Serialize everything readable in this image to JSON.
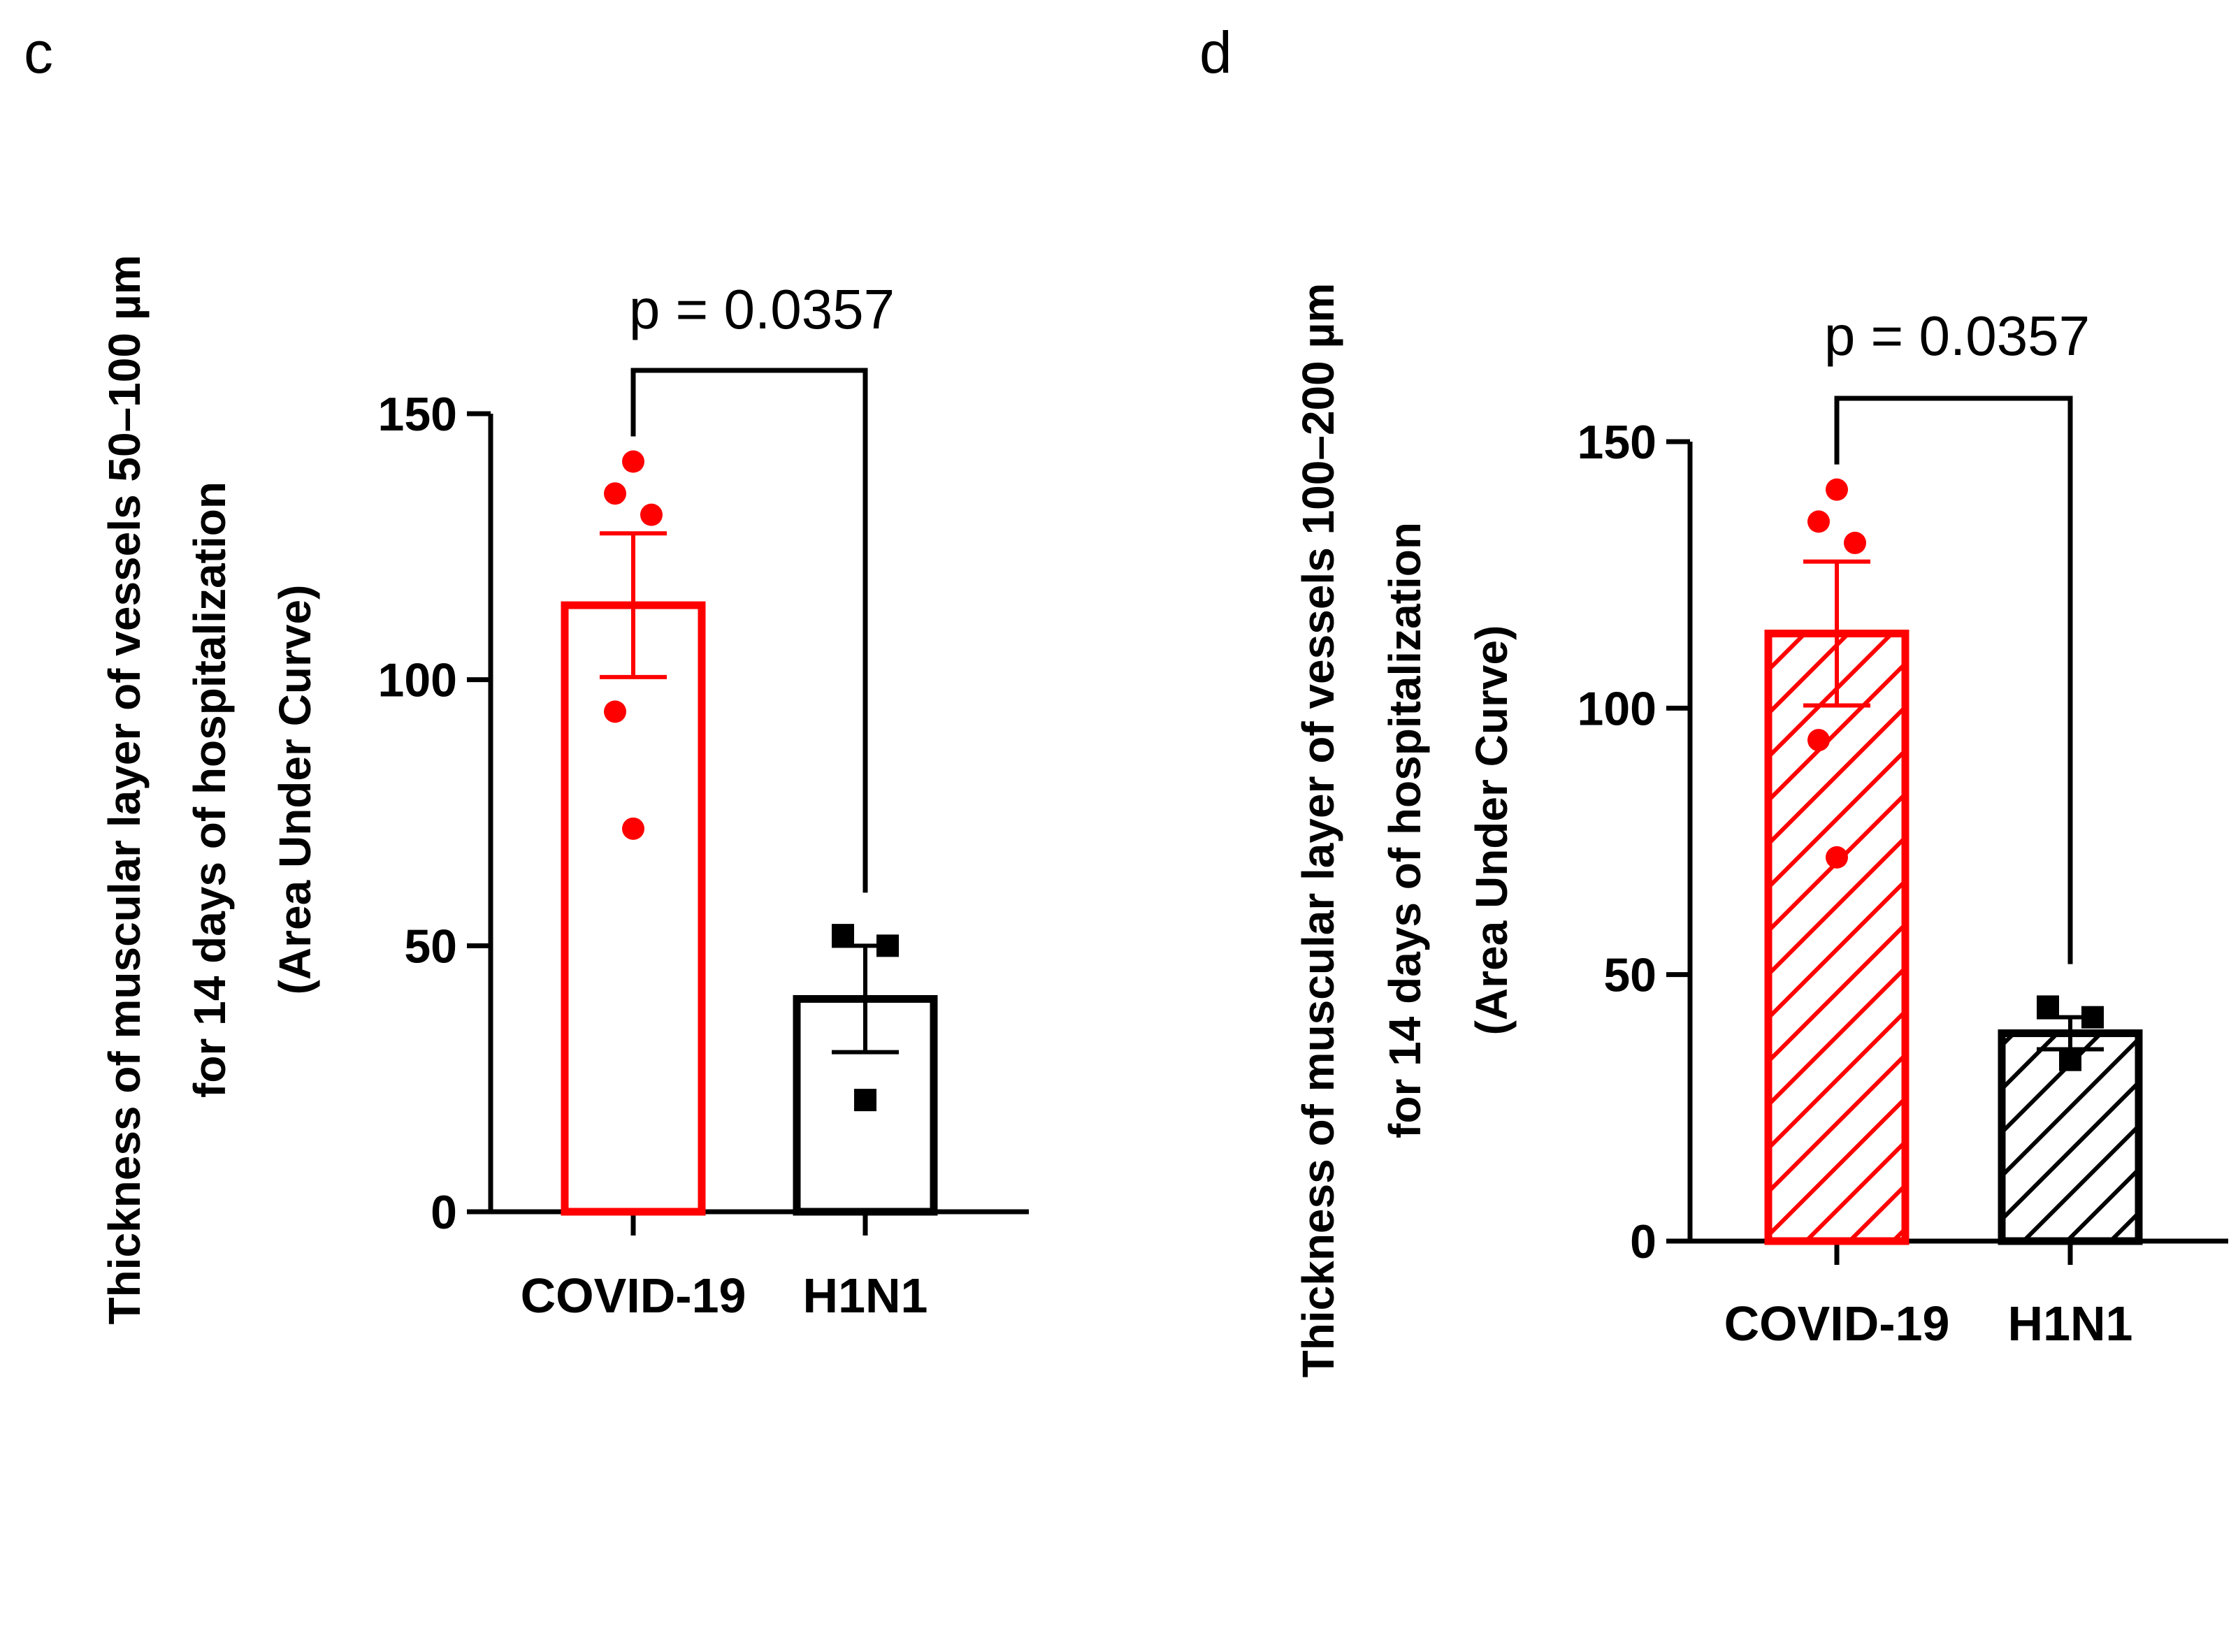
{
  "chart_data": [
    {
      "panel": "c",
      "type": "bar",
      "style": "open",
      "title": "",
      "xlabel": "",
      "ylabel_lines": [
        "Thickness of muscular layer of vessels 50–100 µm",
        "for 14 days of hospitalization",
        "(Area Under Curve)"
      ],
      "ylim": [
        0,
        150
      ],
      "yticks": [
        0,
        50,
        100,
        150
      ],
      "categories": [
        "COVID-19",
        "H1N1"
      ],
      "colors": [
        "#ff0000",
        "#000000"
      ],
      "values": [
        114,
        40
      ],
      "sem": [
        13.5,
        10
      ],
      "points": [
        [
          141,
          135,
          131,
          94,
          72
        ],
        [
          52,
          50,
          21
        ]
      ],
      "point_shapes": [
        "circle",
        "square"
      ],
      "annotation": "p = 0.0357"
    },
    {
      "panel": "d",
      "type": "bar",
      "style": "hatched",
      "title": "",
      "xlabel": "",
      "ylabel_lines": [
        "Thickness of muscular layer of  vessels 100–200 µm",
        "for 14 days of hospitalization",
        "(Area Under Curve)"
      ],
      "ylim": [
        0,
        150
      ],
      "yticks": [
        0,
        50,
        100,
        150
      ],
      "categories": [
        "COVID-19",
        "H1N1"
      ],
      "colors": [
        "#ff0000",
        "#000000"
      ],
      "values": [
        114,
        39
      ],
      "sem": [
        13.5,
        3
      ],
      "points": [
        [
          141,
          135,
          131,
          94,
          72
        ],
        [
          44,
          42,
          34
        ]
      ],
      "point_shapes": [
        "circle",
        "square"
      ],
      "annotation": "p = 0.0357"
    }
  ]
}
